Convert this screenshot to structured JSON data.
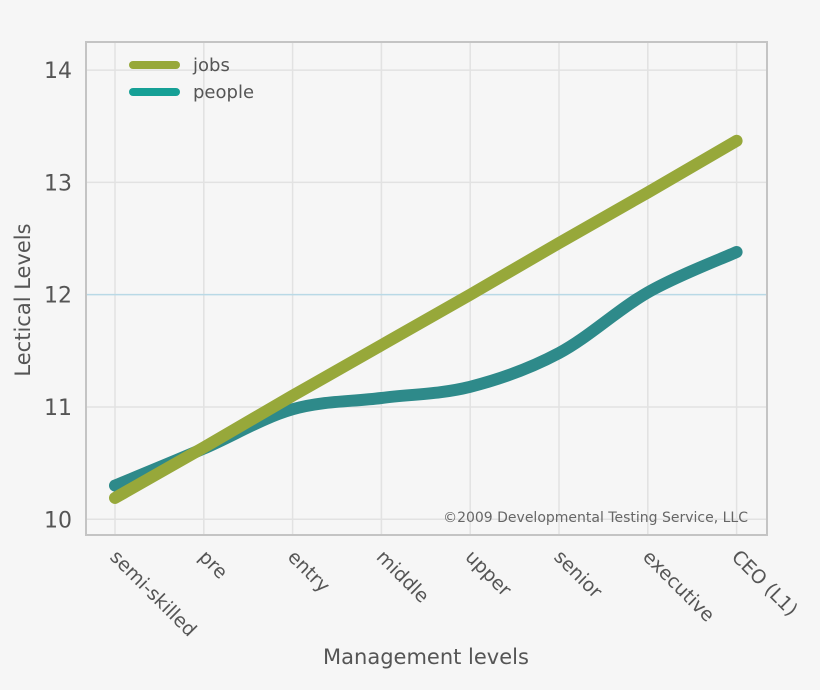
{
  "chart_data": {
    "type": "line",
    "xlabel": "Management levels",
    "ylabel": "Lectical Levels",
    "categories": [
      "semi-skilled",
      "pre",
      "entry",
      "middle",
      "upper",
      "senior",
      "executive",
      "CEO (L1)"
    ],
    "yticks": [
      "10",
      "11",
      "12",
      "13",
      "14"
    ],
    "ylim": [
      9.86,
      14.25
    ],
    "grid": true,
    "highlight_gridline": 12,
    "legend_placement": "top-left",
    "series": [
      {
        "name": "jobs",
        "color": "#97a83a",
        "values": [
          10.19,
          10.64,
          11.1,
          11.55,
          12.0,
          12.46,
          12.91,
          13.37
        ]
      },
      {
        "name": "people",
        "color": "#2e8a8a",
        "legend_color": "#16a096",
        "values": [
          10.3,
          10.63,
          10.98,
          11.08,
          11.18,
          11.48,
          12.02,
          12.38
        ]
      }
    ],
    "annotation": "©2009 Developmental Testing Service, LLC"
  }
}
